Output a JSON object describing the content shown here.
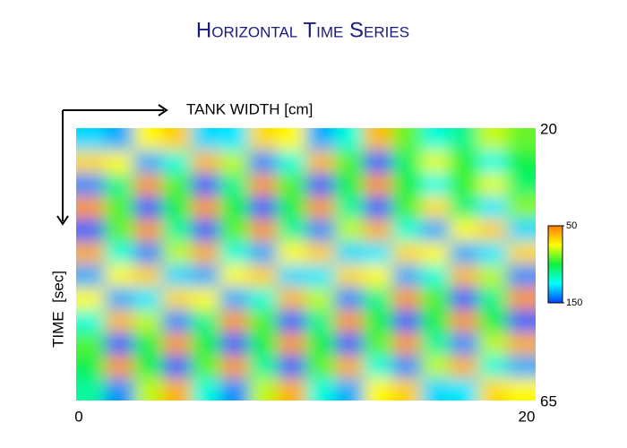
{
  "chart_data": {
    "type": "heatmap",
    "title": "Horizontal Time Series",
    "xlabel": "TANK WIDTH [cm]",
    "ylabel": "TIME  [sec]",
    "xlim": [
      0,
      20
    ],
    "xticks": [
      0,
      20
    ],
    "ylim": [
      20,
      65
    ],
    "yticks": [
      20,
      65
    ],
    "clim": [
      50,
      150
    ],
    "cticks": [
      50,
      150
    ],
    "colormap": [
      "#ff7a00",
      "#ffff00",
      "#10f040",
      "#00ffff",
      "#0040ff"
    ],
    "values": [
      [
        130,
        136,
        74,
        66,
        130,
        128,
        68,
        74,
        136,
        120,
        62,
        91,
        120,
        110,
        81,
        91
      ],
      [
        68,
        74,
        136,
        120,
        62,
        82,
        140,
        120,
        62,
        93,
        145,
        105,
        78,
        97,
        122,
        101
      ],
      [
        140,
        110,
        56,
        93,
        145,
        110,
        56,
        93,
        145,
        102,
        56,
        101,
        122,
        96,
        78,
        106
      ],
      [
        56,
        93,
        145,
        102,
        56,
        102,
        145,
        102,
        56,
        112,
        145,
        94,
        69,
        108,
        128,
        87
      ],
      [
        145,
        92,
        56,
        112,
        145,
        92,
        56,
        112,
        140,
        82,
        60,
        120,
        136,
        74,
        66,
        130
      ],
      [
        60,
        120,
        140,
        82,
        60,
        120,
        136,
        74,
        66,
        130,
        128,
        68,
        74,
        136,
        128,
        68
      ],
      [
        136,
        74,
        66,
        130,
        136,
        74,
        66,
        130,
        128,
        68,
        74,
        136,
        120,
        62,
        82,
        140
      ],
      [
        74,
        136,
        128,
        68,
        74,
        136,
        120,
        62,
        82,
        140,
        110,
        56,
        93,
        145,
        110,
        56
      ],
      [
        120,
        62,
        82,
        140,
        110,
        56,
        93,
        145,
        110,
        56,
        102,
        145,
        102,
        56,
        102,
        145
      ],
      [
        93,
        145,
        102,
        56,
        102,
        145,
        102,
        56,
        102,
        145,
        92,
        56,
        112,
        140,
        82,
        60
      ],
      [
        102,
        56,
        102,
        145,
        92,
        56,
        112,
        145,
        92,
        60,
        120,
        140,
        82,
        60,
        120,
        136
      ],
      [
        112,
        140,
        82,
        60,
        120,
        140,
        82,
        60,
        120,
        136,
        74,
        66,
        130,
        128,
        68,
        74
      ]
    ]
  }
}
